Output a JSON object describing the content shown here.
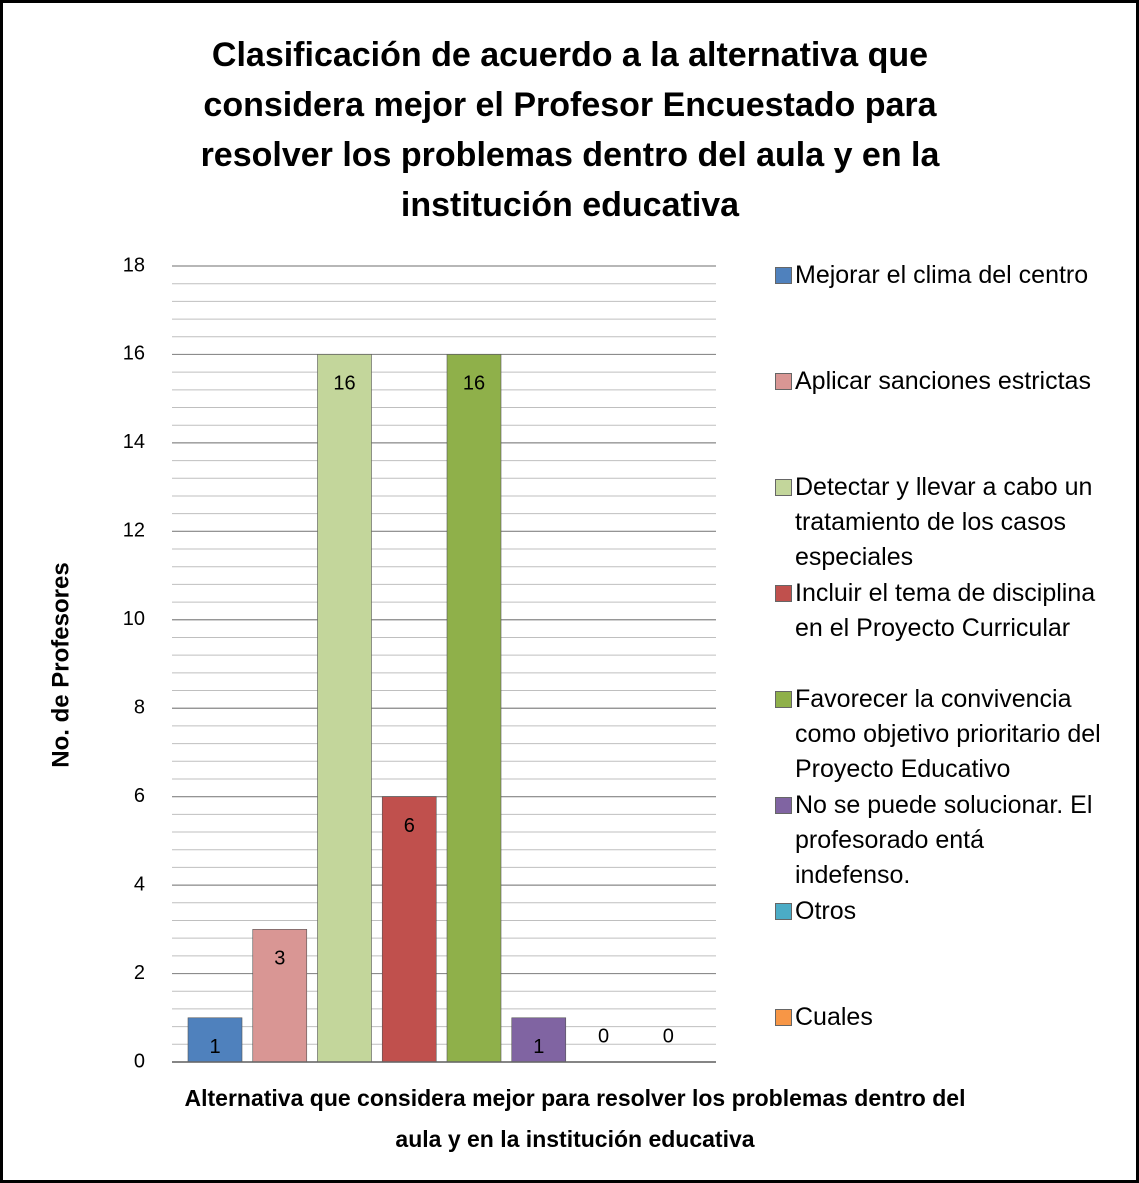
{
  "chart_data": {
    "type": "bar",
    "title": "Clasificación de acuerdo a la alternativa que considera mejor el Profesor Encuestado para resolver los problemas dentro del aula y en la institución educativa",
    "x_label": "Alternativa que considera mejor para resolver los problemas dentro del aula y en la institución educativa",
    "y_label": "No. de Profesores",
    "series": [
      {
        "name": "Mejorar el clima del centro",
        "color": "#4f81bd",
        "values": [
          1
        ]
      },
      {
        "name": "Aplicar sanciones estrictas",
        "color": "#d99694",
        "values": [
          3
        ]
      },
      {
        "name": "Detectar y llevar a cabo un tratamiento de los casos especiales",
        "color": "#c3d69b",
        "values": [
          16
        ]
      },
      {
        "name": "Incluir el tema de disciplina en el Proyecto Curricular",
        "color": "#c0504d",
        "values": [
          6
        ]
      },
      {
        "name": "Favorecer la convivencia como objetivo prioritario del Proyecto Educativo",
        "color": "#8fb04a",
        "values": [
          16
        ]
      },
      {
        "name": "No se puede solucionar. El profesorado entá indefenso.",
        "color": "#8064a2",
        "values": [
          1
        ]
      },
      {
        "name": "Otros",
        "color": "#4bacc6",
        "values": [
          0
        ]
      },
      {
        "name": "Cuales",
        "color": "#f79646",
        "values": [
          0
        ]
      }
    ],
    "ylim": [
      0,
      18
    ],
    "yticks": [
      0,
      2,
      4,
      6,
      8,
      10,
      12,
      14,
      16,
      18
    ],
    "grid": true,
    "minor_grid_step": 0.4,
    "legend": "right"
  }
}
